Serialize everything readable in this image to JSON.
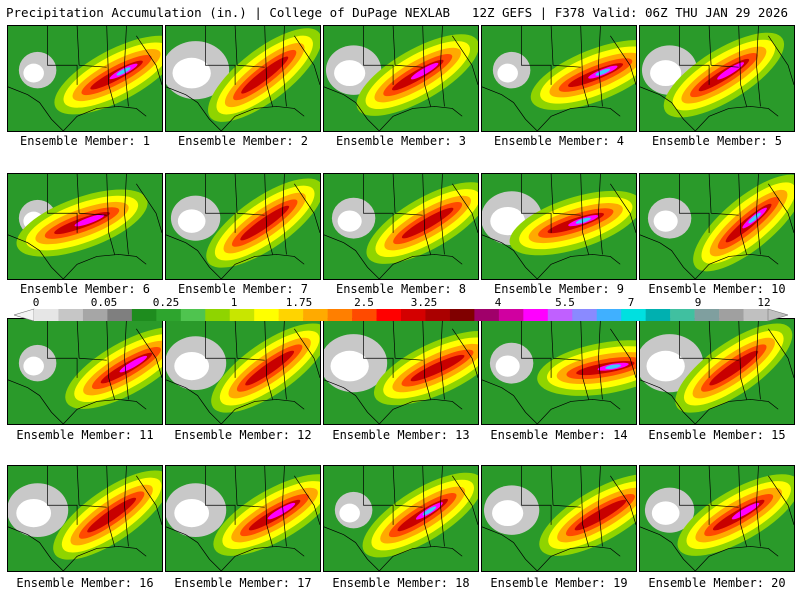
{
  "header": {
    "title": "Precipitation Accumulation (in.) | College of DuPage NEXLAB",
    "run_info": "12Z GEFS | F378 Valid: 06Z THU JAN 29 2026"
  },
  "legend": {
    "ticks": [
      "0",
      "0.05",
      "0.25",
      "1",
      "1.75",
      "2.5",
      "3.25",
      "4",
      "5.5",
      "7",
      "9",
      "12"
    ],
    "colors": [
      "#e6e6e6",
      "#c6c6c6",
      "#a6a6a6",
      "#7f7f7f",
      "#1e8c1e",
      "#2ea52e",
      "#4fc44f",
      "#8fd400",
      "#c8e600",
      "#ffff00",
      "#ffd400",
      "#ffaa00",
      "#ff7f00",
      "#ff4a00",
      "#ff0000",
      "#d40000",
      "#aa0000",
      "#800000",
      "#a0006a",
      "#d000a0",
      "#ff00ff",
      "#c060ff",
      "#8a8aff",
      "#40b0ff",
      "#00e0e0",
      "#00b0b0",
      "#40c0a0",
      "#7f9f9f",
      "#a0a0a0",
      "#c0c0c0"
    ]
  },
  "members": [
    {
      "label": "Ensemble Member: 1"
    },
    {
      "label": "Ensemble Member: 2"
    },
    {
      "label": "Ensemble Member: 3"
    },
    {
      "label": "Ensemble Member: 4"
    },
    {
      "label": "Ensemble Member: 5"
    },
    {
      "label": "Ensemble Member: 6"
    },
    {
      "label": "Ensemble Member: 7"
    },
    {
      "label": "Ensemble Member: 8"
    },
    {
      "label": "Ensemble Member: 9"
    },
    {
      "label": "Ensemble Member: 10"
    },
    {
      "label": "Ensemble Member: 11"
    },
    {
      "label": "Ensemble Member: 12"
    },
    {
      "label": "Ensemble Member: 13"
    },
    {
      "label": "Ensemble Member: 14"
    },
    {
      "label": "Ensemble Member: 15"
    },
    {
      "label": "Ensemble Member: 16"
    },
    {
      "label": "Ensemble Member: 17"
    },
    {
      "label": "Ensemble Member: 18"
    },
    {
      "label": "Ensemble Member: 19"
    },
    {
      "label": "Ensemble Member: 20"
    }
  ]
}
